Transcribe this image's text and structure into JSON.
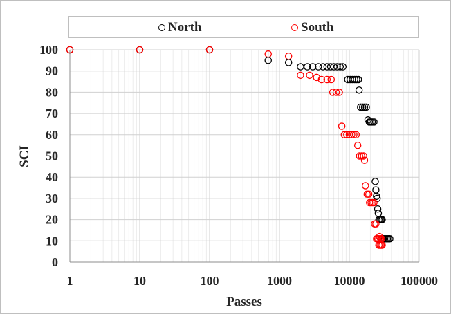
{
  "chart_data": {
    "type": "scatter",
    "xlabel": "Passes",
    "ylabel": "SCI",
    "x_scale": "log",
    "xlim": [
      1,
      100000
    ],
    "ylim": [
      0,
      100
    ],
    "x_ticks": [
      "1",
      "10",
      "100",
      "1000",
      "10000",
      "100000"
    ],
    "y_ticks": [
      "0",
      "10",
      "20",
      "30",
      "40",
      "50",
      "60",
      "70",
      "80",
      "90",
      "100"
    ],
    "grid": "major and minor",
    "legend_position": "top",
    "series": [
      {
        "name": "North",
        "color": "#000000",
        "points": [
          [
            1,
            100
          ],
          [
            10,
            100
          ],
          [
            100,
            100
          ],
          [
            690,
            95
          ],
          [
            1350,
            94
          ],
          [
            2000,
            92
          ],
          [
            2500,
            92
          ],
          [
            3000,
            92
          ],
          [
            3600,
            92
          ],
          [
            4200,
            92
          ],
          [
            4800,
            92
          ],
          [
            5400,
            92
          ],
          [
            6000,
            92
          ],
          [
            6700,
            92
          ],
          [
            7400,
            92
          ],
          [
            8100,
            92
          ],
          [
            9500,
            86
          ],
          [
            10300,
            86
          ],
          [
            11100,
            86
          ],
          [
            11900,
            86
          ],
          [
            12700,
            86
          ],
          [
            13500,
            86
          ],
          [
            13800,
            81
          ],
          [
            14500,
            73
          ],
          [
            15500,
            73
          ],
          [
            16500,
            73
          ],
          [
            17500,
            73
          ],
          [
            18500,
            67
          ],
          [
            19300,
            66
          ],
          [
            20200,
            66
          ],
          [
            21200,
            66
          ],
          [
            22500,
            66
          ],
          [
            23500,
            38
          ],
          [
            24000,
            34
          ],
          [
            24500,
            31
          ],
          [
            25000,
            30
          ],
          [
            25500,
            25
          ],
          [
            26000,
            23
          ],
          [
            26500,
            20
          ],
          [
            27500,
            20
          ],
          [
            28500,
            20
          ],
          [
            29500,
            20
          ],
          [
            30500,
            11
          ],
          [
            32000,
            11
          ],
          [
            33500,
            11
          ],
          [
            35000,
            11
          ],
          [
            36500,
            11
          ],
          [
            38000,
            11
          ]
        ]
      },
      {
        "name": "South",
        "color": "#ff0000",
        "points": [
          [
            1,
            100
          ],
          [
            10,
            100
          ],
          [
            100,
            100
          ],
          [
            690,
            98
          ],
          [
            1350,
            97
          ],
          [
            2000,
            88
          ],
          [
            2700,
            88
          ],
          [
            3400,
            87
          ],
          [
            4000,
            86
          ],
          [
            4800,
            86
          ],
          [
            5500,
            86
          ],
          [
            5800,
            80
          ],
          [
            6500,
            80
          ],
          [
            7200,
            80
          ],
          [
            7800,
            64
          ],
          [
            8500,
            60
          ],
          [
            9200,
            60
          ],
          [
            10000,
            60
          ],
          [
            10800,
            60
          ],
          [
            11600,
            60
          ],
          [
            12500,
            60
          ],
          [
            13200,
            55
          ],
          [
            14000,
            50
          ],
          [
            15000,
            50
          ],
          [
            16000,
            50
          ],
          [
            16500,
            48
          ],
          [
            17000,
            36
          ],
          [
            18000,
            32
          ],
          [
            19000,
            32
          ],
          [
            19500,
            28
          ],
          [
            20500,
            28
          ],
          [
            21500,
            28
          ],
          [
            22500,
            28
          ],
          [
            23000,
            18
          ],
          [
            24000,
            18
          ],
          [
            24500,
            11
          ],
          [
            25500,
            11
          ],
          [
            26500,
            11
          ],
          [
            27000,
            12
          ],
          [
            28000,
            11
          ],
          [
            29000,
            11
          ],
          [
            26500,
            8
          ],
          [
            27500,
            8
          ],
          [
            28500,
            8
          ],
          [
            29500,
            8
          ]
        ]
      }
    ]
  }
}
